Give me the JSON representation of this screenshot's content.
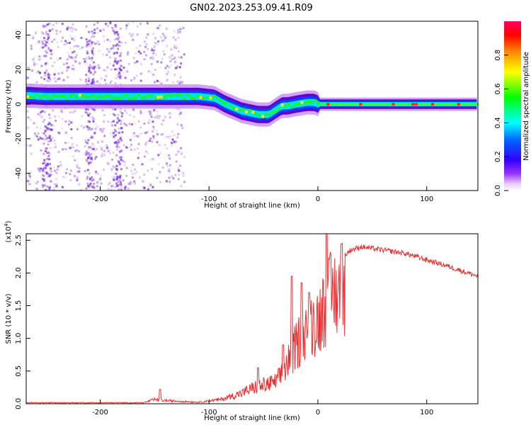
{
  "title": "GN02.2023.253.09.41.R09",
  "chart_data": [
    {
      "type": "heatmap",
      "xlabel": "Height of straight line (km)",
      "ylabel": "Frequency (Hz)",
      "xlim": [
        -268,
        147
      ],
      "ylim": [
        -50,
        48
      ],
      "xticks": [
        -200,
        -100,
        0,
        100
      ],
      "xtick_labels": [
        "-200",
        "-100",
        "0",
        "100"
      ],
      "yticks": [
        40,
        20,
        0,
        -20,
        -40
      ],
      "ytick_labels": [
        "40",
        "20",
        "0",
        "-20",
        "-40"
      ],
      "grid": false,
      "ridge": {
        "x": [
          -268,
          -250,
          -200,
          -150,
          -110,
          -95,
          -85,
          -70,
          -55,
          -45,
          -38,
          -33,
          -28,
          -20,
          -10,
          -3,
          0,
          10,
          50,
          100,
          147
        ],
        "y": [
          5,
          4.5,
          4.5,
          4.5,
          4.5,
          3.5,
          0,
          -4,
          -6,
          -6,
          -3,
          -1,
          -1,
          0,
          1,
          1,
          0,
          0,
          0,
          0,
          0
        ]
      },
      "colorbar": {
        "label": "Normalized spectral amplitude",
        "range": [
          0,
          1
        ],
        "ticks": [
          0.0,
          0.2,
          0.4,
          0.6,
          0.8
        ],
        "tick_labels": [
          "0.0",
          "0.2",
          "0.4",
          "0.6",
          "0.8"
        ],
        "colors": [
          "#ffffff",
          "#cc99ff",
          "#6600cc",
          "#0000ff",
          "#00ffff",
          "#00ff00",
          "#ffff00",
          "#ff8800",
          "#ff0000",
          "#ff0080"
        ]
      }
    },
    {
      "type": "line",
      "xlabel": "Height of straight line (km)",
      "ylabel": "SNR (10 * v/v)",
      "y_multiplier_label": "(x10",
      "y_multiplier_exp": "4",
      "y_multiplier_close": ")",
      "xlim": [
        -268,
        147
      ],
      "ylim": [
        0,
        2.6
      ],
      "xticks": [
        -200,
        -100,
        0,
        100
      ],
      "xtick_labels": [
        "-200",
        "-100",
        "0",
        "100"
      ],
      "yticks": [
        0.0,
        0.5,
        1.0,
        1.5,
        2.0,
        2.5
      ],
      "ytick_labels": [
        "0.0",
        "0.5",
        "1.0",
        "1.5",
        "2.0",
        "2.5"
      ],
      "grid": false,
      "color": "#e83030",
      "envelope": {
        "x": [
          -268,
          -160,
          -150,
          -140,
          -110,
          -90,
          -70,
          -60,
          -50,
          -40,
          -35,
          -30,
          -25,
          -20,
          -15,
          -10,
          0,
          5,
          10,
          20,
          30,
          40,
          60,
          80,
          100,
          120,
          147
        ],
        "y": [
          0.02,
          0.02,
          0.08,
          0.06,
          0.03,
          0.08,
          0.2,
          0.3,
          0.35,
          0.4,
          0.5,
          0.7,
          0.9,
          1.1,
          1.3,
          1.5,
          1.6,
          1.8,
          2.0,
          2.2,
          2.35,
          2.4,
          2.35,
          2.3,
          2.2,
          2.1,
          1.95
        ]
      },
      "spikes": [
        {
          "x": -145,
          "y": 0.22
        },
        {
          "x": -55,
          "y": 0.55
        },
        {
          "x": -32,
          "y": 0.9
        },
        {
          "x": -24,
          "y": 1.95
        },
        {
          "x": -15,
          "y": 1.85
        },
        {
          "x": -8,
          "y": 1.7
        },
        {
          "x": 8,
          "y": 2.6
        },
        {
          "x": 22,
          "y": 2.45
        }
      ]
    }
  ]
}
